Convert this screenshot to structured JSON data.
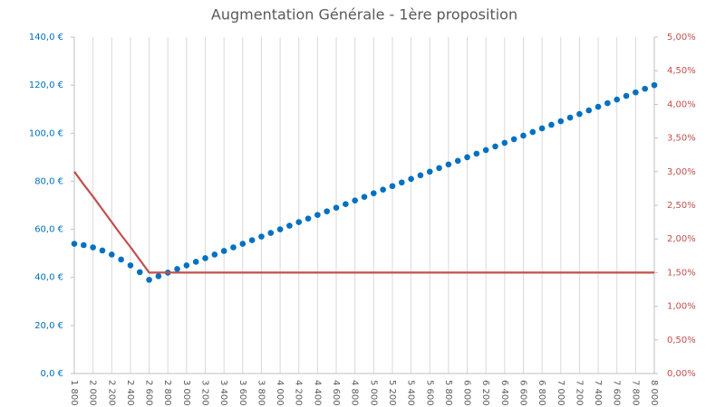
{
  "chart_data": {
    "type": "line",
    "title": "Augmentation Générale - 1ère proposition",
    "x": [
      1800,
      1900,
      2000,
      2100,
      2200,
      2300,
      2400,
      2500,
      2600,
      2700,
      2800,
      2900,
      3000,
      3100,
      3200,
      3300,
      3400,
      3500,
      3600,
      3700,
      3800,
      3900,
      4000,
      4100,
      4200,
      4300,
      4400,
      4500,
      4600,
      4700,
      4800,
      4900,
      5000,
      5100,
      5200,
      5300,
      5400,
      5500,
      5600,
      5700,
      5800,
      5900,
      6000,
      6100,
      6200,
      6300,
      6400,
      6500,
      6600,
      6700,
      6800,
      6900,
      7000,
      7100,
      7200,
      7300,
      7400,
      7500,
      7600,
      7700,
      7800,
      7900,
      8000
    ],
    "xlim": [
      1800,
      8000
    ],
    "xticks": [
      {
        "value": 1800,
        "label": "1 800"
      },
      {
        "value": 2000,
        "label": "2 000"
      },
      {
        "value": 2200,
        "label": "2 200"
      },
      {
        "value": 2400,
        "label": "2 400"
      },
      {
        "value": 2600,
        "label": "2 600"
      },
      {
        "value": 2800,
        "label": "2 800"
      },
      {
        "value": 3000,
        "label": "3 000"
      },
      {
        "value": 3200,
        "label": "3 200"
      },
      {
        "value": 3400,
        "label": "3 400"
      },
      {
        "value": 3600,
        "label": "3 600"
      },
      {
        "value": 3800,
        "label": "3 800"
      },
      {
        "value": 4000,
        "label": "4 000"
      },
      {
        "value": 4200,
        "label": "4 200"
      },
      {
        "value": 4400,
        "label": "4 400"
      },
      {
        "value": 4600,
        "label": "4 600"
      },
      {
        "value": 4800,
        "label": "4 800"
      },
      {
        "value": 5000,
        "label": "5 000"
      },
      {
        "value": 5200,
        "label": "5 200"
      },
      {
        "value": 5400,
        "label": "5 400"
      },
      {
        "value": 5600,
        "label": "5 600"
      },
      {
        "value": 5800,
        "label": "5 800"
      },
      {
        "value": 6000,
        "label": "6 000"
      },
      {
        "value": 6200,
        "label": "6 200"
      },
      {
        "value": 6400,
        "label": "6 400"
      },
      {
        "value": 6600,
        "label": "6 600"
      },
      {
        "value": 6800,
        "label": "6 800"
      },
      {
        "value": 7000,
        "label": "7 000"
      },
      {
        "value": 7200,
        "label": "7 200"
      },
      {
        "value": 7400,
        "label": "7 400"
      },
      {
        "value": 7600,
        "label": "7 600"
      },
      {
        "value": 7800,
        "label": "7 800"
      },
      {
        "value": 8000,
        "label": "8 000"
      }
    ],
    "ylim": [
      0,
      140
    ],
    "yticks": [
      {
        "value": 0,
        "label": "0,0 €"
      },
      {
        "value": 20,
        "label": "20,0 €"
      },
      {
        "value": 40,
        "label": "40,0 €"
      },
      {
        "value": 60,
        "label": "60,0 €"
      },
      {
        "value": 80,
        "label": "80,0 €"
      },
      {
        "value": 100,
        "label": "100,0 €"
      },
      {
        "value": 120,
        "label": "120,0 €"
      },
      {
        "value": 140,
        "label": "140,0 €"
      }
    ],
    "y2lim": [
      0,
      5
    ],
    "y2ticks": [
      {
        "value": 0,
        "label": "0,00%"
      },
      {
        "value": 0.5,
        "label": "0,50%"
      },
      {
        "value": 1,
        "label": "1,00%"
      },
      {
        "value": 1.5,
        "label": "1,50%"
      },
      {
        "value": 2,
        "label": "2,00%"
      },
      {
        "value": 2.5,
        "label": "2,50%"
      },
      {
        "value": 3,
        "label": "3,00%"
      },
      {
        "value": 3.5,
        "label": "3,50%"
      },
      {
        "value": 4,
        "label": "4,00%"
      },
      {
        "value": 4.5,
        "label": "4,50%"
      },
      {
        "value": 5,
        "label": "5,00%"
      }
    ],
    "grid": true,
    "series": [
      {
        "color": "#0070c0",
        "marker": "dot",
        "values": [
          54,
          53.44,
          52.5,
          51.19,
          49.5,
          47.44,
          45,
          42.19,
          39,
          40.5,
          42,
          43.5,
          45,
          46.5,
          48,
          49.5,
          51,
          52.5,
          54,
          55.5,
          57,
          58.5,
          60,
          61.5,
          63,
          64.5,
          66,
          67.5,
          69,
          70.5,
          72,
          73.5,
          75,
          76.5,
          78,
          79.5,
          81,
          82.5,
          84,
          85.5,
          87,
          88.5,
          90,
          91.5,
          93,
          94.5,
          96,
          97.5,
          99,
          100.5,
          102,
          103.5,
          105,
          106.5,
          108,
          109.5,
          111,
          112.5,
          114,
          115.5,
          117,
          118.5,
          120
        ]
      },
      {
        "color": "#c0504d",
        "marker": "line",
        "axis": "y2",
        "values": [
          3,
          2.81,
          2.63,
          2.44,
          2.25,
          2.06,
          1.88,
          1.69,
          1.5,
          1.5,
          1.5,
          1.5,
          1.5,
          1.5,
          1.5,
          1.5,
          1.5,
          1.5,
          1.5,
          1.5,
          1.5,
          1.5,
          1.5,
          1.5,
          1.5,
          1.5,
          1.5,
          1.5,
          1.5,
          1.5,
          1.5,
          1.5,
          1.5,
          1.5,
          1.5,
          1.5,
          1.5,
          1.5,
          1.5,
          1.5,
          1.5,
          1.5,
          1.5,
          1.5,
          1.5,
          1.5,
          1.5,
          1.5,
          1.5,
          1.5,
          1.5,
          1.5,
          1.5,
          1.5,
          1.5,
          1.5,
          1.5,
          1.5,
          1.5,
          1.5,
          1.5,
          1.5,
          1.5
        ]
      }
    ]
  }
}
